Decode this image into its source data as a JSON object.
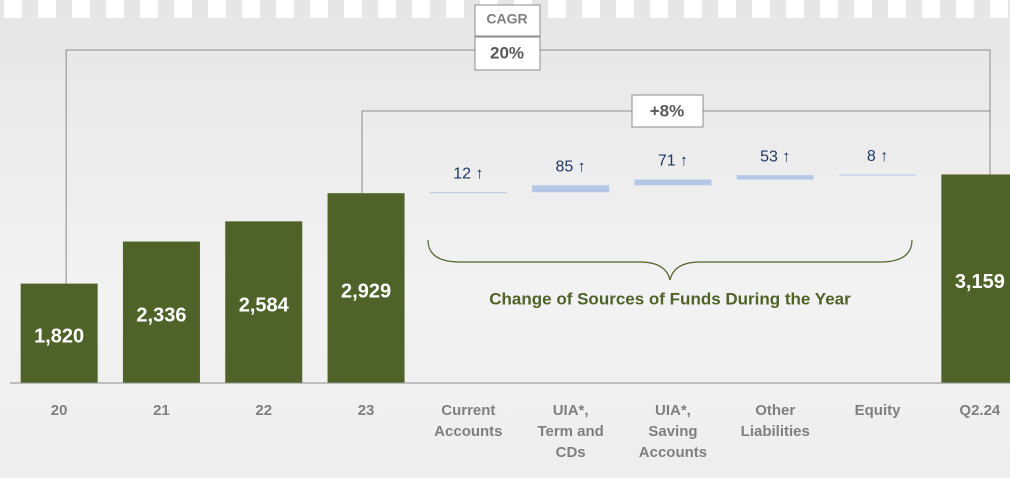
{
  "chart_data": {
    "type": "waterfall",
    "categories": [
      "20",
      "21",
      "22",
      "23",
      "Current Accounts",
      "UIA*, Term and CDs",
      "UIA*, Saving Accounts",
      "Other Liabilities",
      "Equity",
      "Q2.24"
    ],
    "values": [
      1820,
      2336,
      2584,
      2929,
      12,
      85,
      71,
      53,
      8,
      3159
    ],
    "value_labels": [
      "1,820",
      "2,336",
      "2,584",
      "2,929",
      "12 ↑",
      "85 ↑",
      "71 ↑",
      "53 ↑",
      "8 ↑",
      "3,159"
    ],
    "measure": [
      "absolute",
      "absolute",
      "absolute",
      "absolute",
      "relative",
      "relative",
      "relative",
      "relative",
      "relative",
      "total"
    ],
    "total_color": "#4f6228",
    "increase_color": "#b4c7e7",
    "ylim": [
      600,
      5300
    ],
    "annotations": {
      "cagr_label": "CAGR",
      "cagr_value": "20%",
      "growth": "+8%",
      "brace_label": "Change of Sources of Funds During the Year"
    }
  }
}
